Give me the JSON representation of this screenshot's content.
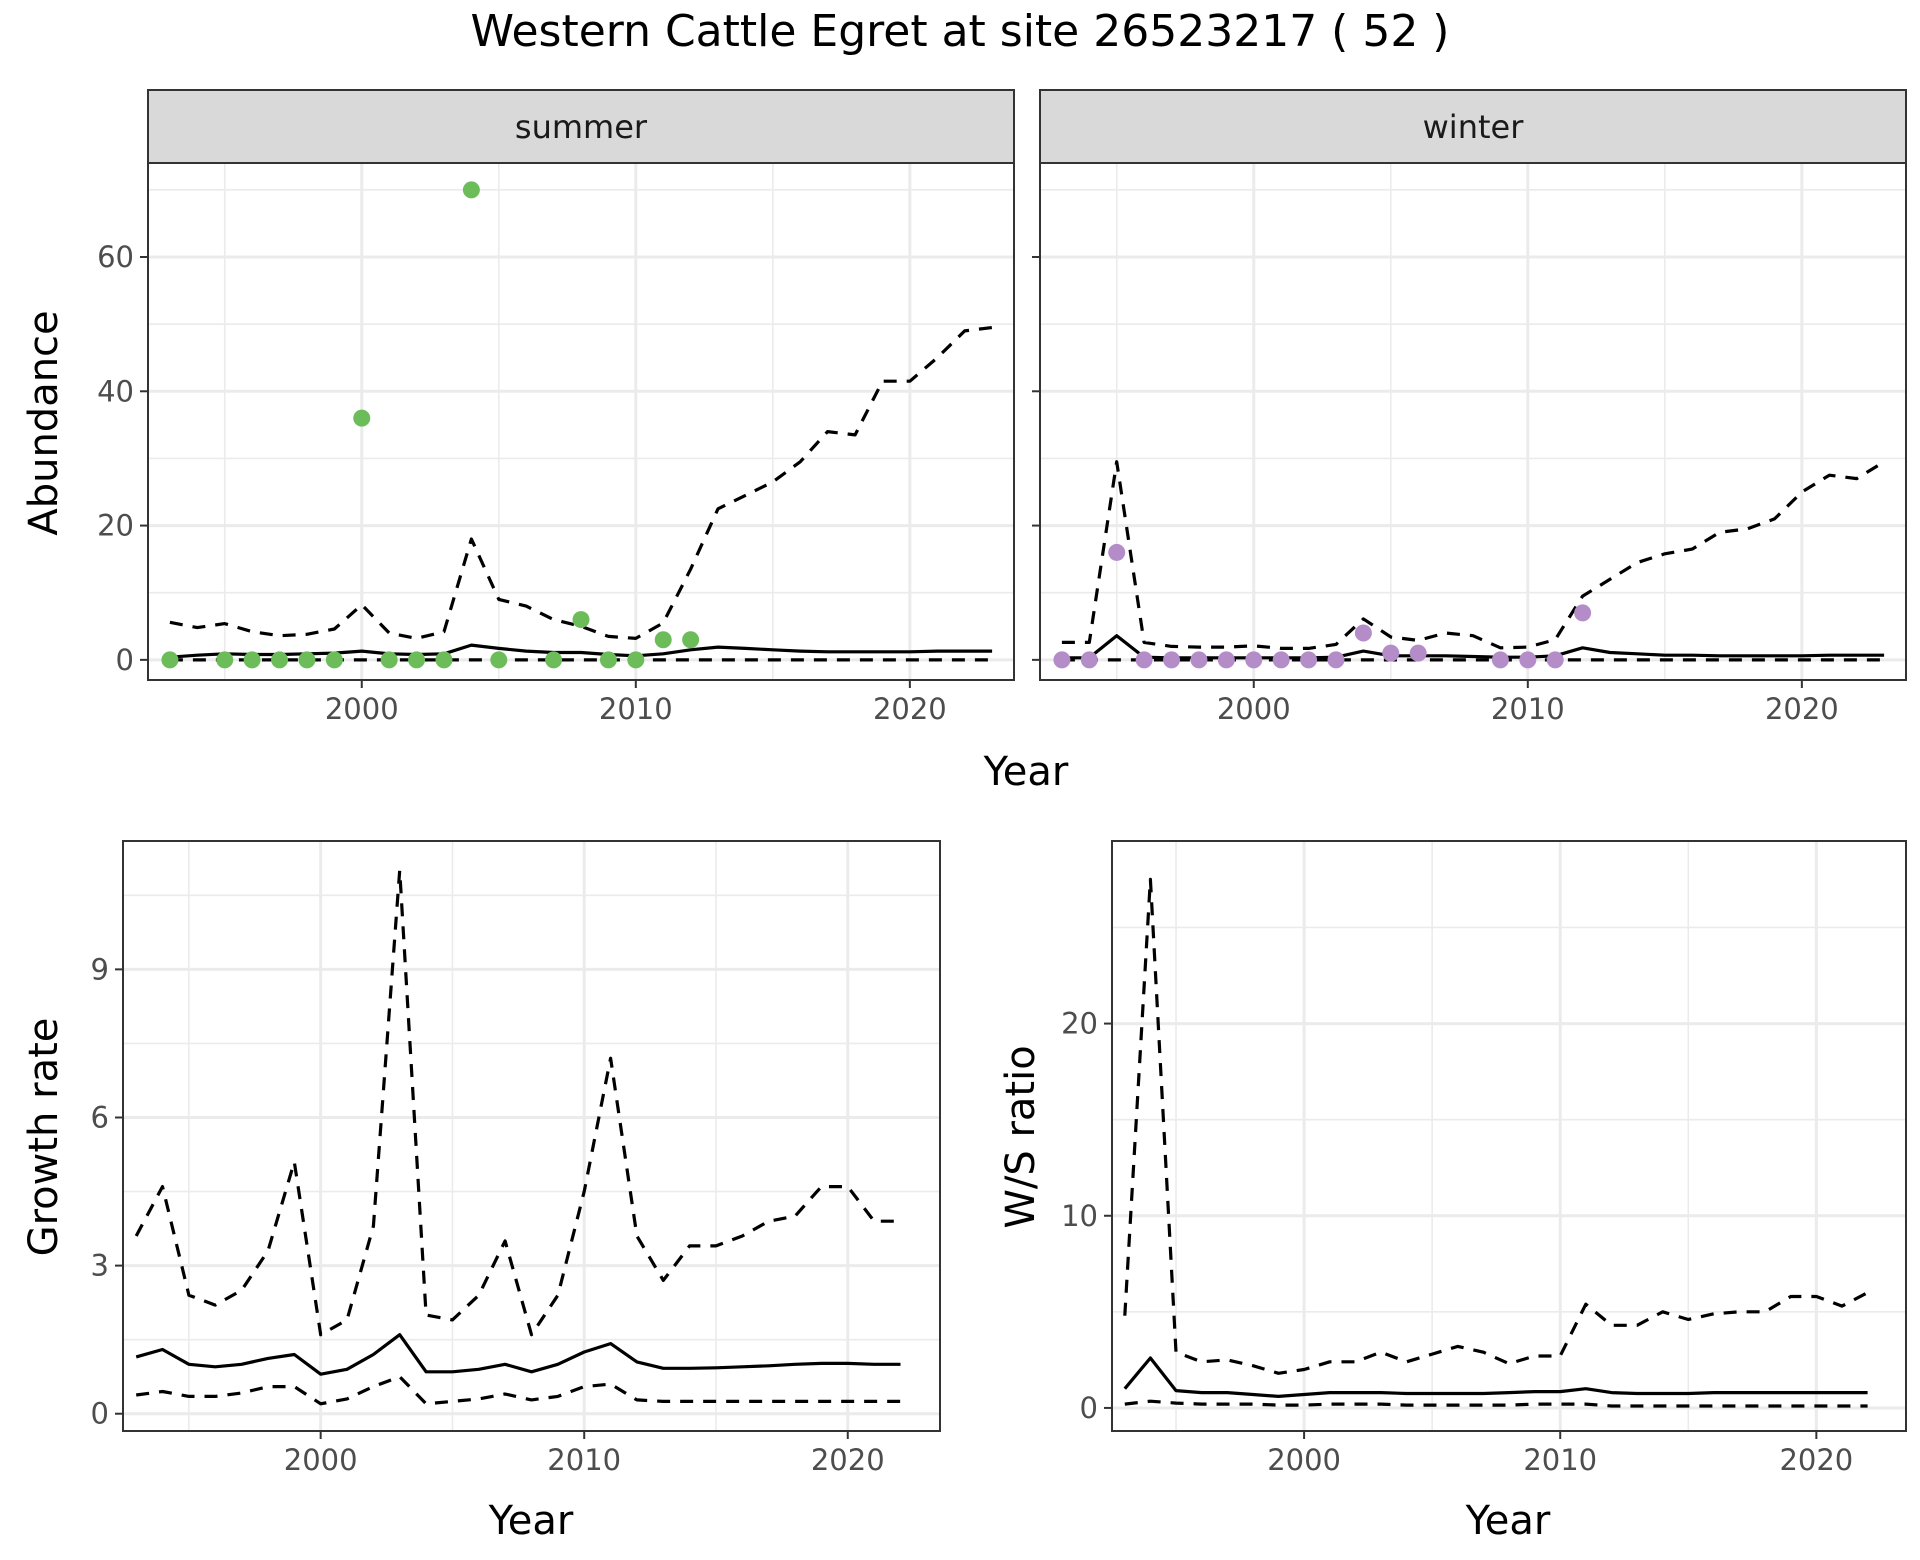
{
  "title": "Western Cattle Egret at site 26523217 ( 52 )",
  "colors": {
    "summer_points": "#6cbd5a",
    "winter_points": "#b48cc8",
    "strip_fill": "#d9d9d9",
    "line": "#000000",
    "grid_major": "#ebebeb",
    "panel_border": "#333333"
  },
  "chart_data": [
    {
      "type": "line",
      "panel": "abundance-summer",
      "strip_label": "summer",
      "xlabel": "Year",
      "ylabel": "Abundance",
      "xlim": [
        1992.2,
        2023.8
      ],
      "ylim": [
        -3,
        74
      ],
      "xticks": [
        2000,
        2010,
        2020
      ],
      "yticks": [
        0,
        20,
        40,
        60
      ],
      "grid": true,
      "points": {
        "x": [
          1993,
          1995,
          1996,
          1997,
          1998,
          1999,
          2000,
          2001,
          2002,
          2003,
          2004,
          2005,
          2007,
          2008,
          2009,
          2010,
          2011,
          2012
        ],
        "y": [
          0,
          0,
          0,
          0,
          0,
          0,
          36,
          0,
          0,
          0,
          70,
          0,
          0,
          6,
          0,
          0,
          3,
          3
        ]
      },
      "series": [
        {
          "style": "solid",
          "x": [
            1993,
            1994,
            1995,
            1996,
            1997,
            1998,
            1999,
            2000,
            2001,
            2002,
            2003,
            2004,
            2005,
            2006,
            2007,
            2008,
            2009,
            2010,
            2011,
            2012,
            2013,
            2014,
            2015,
            2016,
            2017,
            2018,
            2019,
            2020,
            2021,
            2022,
            2023
          ],
          "y": [
            0.4,
            0.7,
            0.9,
            0.8,
            0.8,
            0.9,
            1.0,
            1.3,
            0.9,
            0.8,
            0.9,
            2.2,
            1.7,
            1.3,
            1.1,
            1.1,
            0.8,
            0.6,
            0.9,
            1.5,
            1.9,
            1.7,
            1.5,
            1.3,
            1.2,
            1.2,
            1.2,
            1.2,
            1.3,
            1.3,
            1.3
          ]
        },
        {
          "style": "dashed",
          "x": [
            1993,
            1994,
            1995,
            1996,
            1997,
            1998,
            1999,
            2000,
            2001,
            2002,
            2003,
            2004,
            2005,
            2006,
            2007,
            2008,
            2009,
            2010,
            2011,
            2012,
            2013,
            2014,
            2015,
            2016,
            2017,
            2018,
            2019,
            2020,
            2021,
            2022,
            2023
          ],
          "y": [
            5.6,
            4.8,
            5.4,
            4.2,
            3.6,
            3.8,
            4.6,
            8.2,
            4.0,
            3.2,
            4.2,
            18.0,
            9.0,
            8.0,
            6.0,
            5.0,
            3.5,
            3.2,
            5.5,
            13.5,
            22.5,
            24.5,
            26.5,
            29.5,
            34.0,
            33.5,
            41.5,
            41.5,
            45.0,
            49.0,
            49.5
          ]
        },
        {
          "style": "dashed",
          "x": [
            1993,
            2023
          ],
          "y": [
            0,
            0
          ]
        }
      ]
    },
    {
      "type": "line",
      "panel": "abundance-winter",
      "strip_label": "winter",
      "xlabel": "Year",
      "ylabel": "Abundance",
      "xlim": [
        1992.2,
        2023.8
      ],
      "ylim": [
        -3,
        74
      ],
      "xticks": [
        2000,
        2010,
        2020
      ],
      "yticks": [
        0,
        20,
        40,
        60
      ],
      "grid": true,
      "points": {
        "x": [
          1993,
          1994,
          1995,
          1996,
          1997,
          1998,
          1999,
          2000,
          2001,
          2002,
          2003,
          2004,
          2005,
          2006,
          2009,
          2010,
          2011,
          2012
        ],
        "y": [
          0,
          0,
          16,
          0,
          0,
          0,
          0,
          0,
          0,
          0,
          0,
          4,
          1,
          1,
          0,
          0,
          0,
          7
        ]
      },
      "series": [
        {
          "style": "solid",
          "x": [
            1993,
            1994,
            1995,
            1996,
            1997,
            1998,
            1999,
            2000,
            2001,
            2002,
            2003,
            2004,
            2005,
            2006,
            2007,
            2008,
            2009,
            2010,
            2011,
            2012,
            2013,
            2014,
            2015,
            2016,
            2017,
            2018,
            2019,
            2020,
            2021,
            2022,
            2023
          ],
          "y": [
            0.3,
            0.3,
            3.6,
            0.4,
            0.3,
            0.3,
            0.3,
            0.3,
            0.3,
            0.3,
            0.4,
            1.3,
            0.6,
            0.6,
            0.6,
            0.5,
            0.4,
            0.4,
            0.6,
            1.8,
            1.1,
            0.9,
            0.7,
            0.7,
            0.6,
            0.6,
            0.6,
            0.6,
            0.7,
            0.7,
            0.7
          ]
        },
        {
          "style": "dashed",
          "x": [
            1993,
            1994,
            1995,
            1996,
            1997,
            1998,
            1999,
            2000,
            2001,
            2002,
            2003,
            2004,
            2005,
            2006,
            2007,
            2008,
            2009,
            2010,
            2011,
            2012,
            2013,
            2014,
            2015,
            2016,
            2017,
            2018,
            2019,
            2020,
            2021,
            2022,
            2023
          ],
          "y": [
            2.6,
            2.6,
            29.5,
            2.6,
            2.0,
            1.9,
            1.9,
            2.1,
            1.7,
            1.7,
            2.3,
            6.1,
            3.4,
            2.9,
            4.0,
            3.6,
            1.8,
            1.9,
            3.0,
            9.5,
            12.0,
            14.5,
            15.8,
            16.5,
            19.0,
            19.5,
            21.0,
            25.0,
            27.5,
            27.0,
            29.5
          ]
        },
        {
          "style": "dashed",
          "x": [
            1993,
            2023
          ],
          "y": [
            0,
            0
          ]
        }
      ]
    },
    {
      "type": "line",
      "panel": "growth-rate",
      "xlabel": "Year",
      "ylabel": "Growth rate",
      "xlim": [
        1992.5,
        2023.5
      ],
      "ylim": [
        -0.35,
        11.6
      ],
      "xticks": [
        2000,
        2010,
        2020
      ],
      "yticks": [
        0,
        3,
        6,
        9
      ],
      "grid": true,
      "series": [
        {
          "style": "solid",
          "x": [
            1993,
            1994,
            1995,
            1996,
            1997,
            1998,
            1999,
            2000,
            2001,
            2002,
            2003,
            2004,
            2005,
            2006,
            2007,
            2008,
            2009,
            2010,
            2011,
            2012,
            2013,
            2014,
            2015,
            2016,
            2017,
            2018,
            2019,
            2020,
            2021,
            2022
          ],
          "y": [
            1.15,
            1.3,
            1.0,
            0.95,
            1.0,
            1.12,
            1.2,
            0.8,
            0.9,
            1.2,
            1.6,
            0.85,
            0.85,
            0.9,
            1.0,
            0.85,
            1.0,
            1.25,
            1.42,
            1.05,
            0.92,
            0.92,
            0.93,
            0.95,
            0.97,
            1.0,
            1.02,
            1.02,
            1.0,
            1.0
          ]
        },
        {
          "style": "dashed",
          "x": [
            1993,
            1994,
            1995,
            1996,
            1997,
            1998,
            1999,
            2000,
            2001,
            2002,
            2003,
            2004,
            2005,
            2006,
            2007,
            2008,
            2009,
            2010,
            2011,
            2012,
            2013,
            2014,
            2015,
            2016,
            2017,
            2018,
            2019,
            2020,
            2021,
            2022
          ],
          "y": [
            3.6,
            4.6,
            2.4,
            2.2,
            2.5,
            3.3,
            5.1,
            1.6,
            1.9,
            3.8,
            11.0,
            2.0,
            1.9,
            2.4,
            3.5,
            1.6,
            2.4,
            4.5,
            7.2,
            3.6,
            2.7,
            3.4,
            3.4,
            3.6,
            3.9,
            4.0,
            4.6,
            4.6,
            3.9,
            3.9
          ]
        },
        {
          "style": "dashed",
          "x": [
            1993,
            1994,
            1995,
            1996,
            1997,
            1998,
            1999,
            2000,
            2001,
            2002,
            2003,
            2004,
            2005,
            2006,
            2007,
            2008,
            2009,
            2010,
            2011,
            2012,
            2013,
            2014,
            2015,
            2016,
            2017,
            2018,
            2019,
            2020,
            2021,
            2022
          ],
          "y": [
            0.38,
            0.45,
            0.35,
            0.35,
            0.42,
            0.55,
            0.55,
            0.2,
            0.3,
            0.55,
            0.75,
            0.2,
            0.25,
            0.3,
            0.4,
            0.28,
            0.35,
            0.55,
            0.6,
            0.28,
            0.25,
            0.25,
            0.25,
            0.25,
            0.25,
            0.25,
            0.25,
            0.25,
            0.25,
            0.25
          ]
        }
      ]
    },
    {
      "type": "line",
      "panel": "ws-ratio",
      "xlabel": "Year",
      "ylabel": "W/S ratio",
      "xlim": [
        1992.5,
        2023.5
      ],
      "ylim": [
        -1.2,
        29.5
      ],
      "xticks": [
        2000,
        2010,
        2020
      ],
      "yticks": [
        0,
        10,
        20
      ],
      "grid": true,
      "series": [
        {
          "style": "solid",
          "x": [
            1993,
            1994,
            1995,
            1996,
            1997,
            1998,
            1999,
            2000,
            2001,
            2002,
            2003,
            2004,
            2005,
            2006,
            2007,
            2008,
            2009,
            2010,
            2011,
            2012,
            2013,
            2014,
            2015,
            2016,
            2017,
            2018,
            2019,
            2020,
            2021,
            2022
          ],
          "y": [
            1.0,
            2.6,
            0.9,
            0.8,
            0.8,
            0.7,
            0.6,
            0.7,
            0.8,
            0.8,
            0.8,
            0.75,
            0.75,
            0.75,
            0.75,
            0.8,
            0.85,
            0.85,
            1.0,
            0.8,
            0.75,
            0.75,
            0.75,
            0.8,
            0.8,
            0.8,
            0.8,
            0.8,
            0.8,
            0.8
          ]
        },
        {
          "style": "dashed",
          "x": [
            1993,
            1994,
            1995,
            1996,
            1997,
            1998,
            1999,
            2000,
            2001,
            2002,
            2003,
            2004,
            2005,
            2006,
            2007,
            2008,
            2009,
            2010,
            2011,
            2012,
            2013,
            2014,
            2015,
            2016,
            2017,
            2018,
            2019,
            2020,
            2021,
            2022
          ],
          "y": [
            4.8,
            27.5,
            2.9,
            2.4,
            2.5,
            2.2,
            1.8,
            2.0,
            2.4,
            2.4,
            2.9,
            2.4,
            2.8,
            3.2,
            2.9,
            2.3,
            2.7,
            2.7,
            5.4,
            4.3,
            4.3,
            5.0,
            4.6,
            4.9,
            5.0,
            5.0,
            5.8,
            5.8,
            5.3,
            6.0
          ]
        },
        {
          "style": "dashed",
          "x": [
            1993,
            1994,
            1995,
            1996,
            1997,
            1998,
            1999,
            2000,
            2001,
            2002,
            2003,
            2004,
            2005,
            2006,
            2007,
            2008,
            2009,
            2010,
            2011,
            2012,
            2013,
            2014,
            2015,
            2016,
            2017,
            2018,
            2019,
            2020,
            2021,
            2022
          ],
          "y": [
            0.2,
            0.35,
            0.25,
            0.2,
            0.2,
            0.2,
            0.15,
            0.15,
            0.2,
            0.2,
            0.2,
            0.15,
            0.15,
            0.15,
            0.15,
            0.15,
            0.2,
            0.2,
            0.2,
            0.1,
            0.1,
            0.1,
            0.1,
            0.1,
            0.1,
            0.1,
            0.1,
            0.1,
            0.1,
            0.1
          ]
        }
      ]
    }
  ]
}
